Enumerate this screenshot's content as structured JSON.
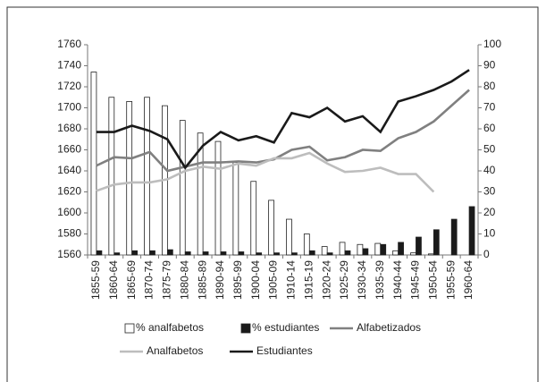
{
  "chart_data": {
    "type": "combo",
    "categories": [
      "1855-59",
      "1860-64",
      "1865-69",
      "1870-74",
      "1875-79",
      "1880-84",
      "1885-89",
      "1890-94",
      "1895-99",
      "1900-04",
      "1905-09",
      "1910-14",
      "1915-19",
      "1920-24",
      "1925-29",
      "1930-34",
      "1935-39",
      "1940-44",
      "1945-49",
      "1950-54",
      "1955-59",
      "1960-64"
    ],
    "ylim": [
      1560,
      1760
    ],
    "yticks": [
      1560,
      1580,
      1600,
      1620,
      1640,
      1660,
      1680,
      1700,
      1720,
      1740,
      1760
    ],
    "y2lim": [
      0,
      100
    ],
    "y2ticks": [
      0,
      10,
      20,
      30,
      40,
      50,
      60,
      70,
      80,
      90,
      100
    ],
    "series": [
      {
        "name": "% analfabetos",
        "type": "bar",
        "axis": "y2",
        "color": "#ffffff",
        "values": [
          87,
          75,
          73,
          75,
          71,
          64,
          58,
          54,
          44,
          35,
          26,
          17,
          10,
          4,
          6,
          5,
          5.5,
          2,
          1,
          0.5,
          0,
          0
        ]
      },
      {
        "name": "% estudiantes",
        "type": "bar",
        "axis": "y2",
        "color": "#1a1a1a",
        "values": [
          2,
          1,
          2,
          2,
          2.5,
          1.5,
          1.5,
          1.5,
          1.5,
          1,
          1,
          1,
          2,
          1,
          2,
          3,
          5,
          6,
          8.5,
          12,
          17,
          23
        ]
      },
      {
        "name": "Alfabetizados",
        "type": "line",
        "color": "#808080",
        "values": [
          1645,
          1653,
          1652,
          1658,
          1640,
          1644,
          1648,
          1648,
          1649,
          1648,
          1651,
          1660,
          1663,
          1650,
          1653,
          1660,
          1659,
          1671,
          1677,
          1687,
          1702,
          1717
        ]
      },
      {
        "name": "Analfabetos",
        "type": "line",
        "color": "#bdbdbd",
        "values": [
          1621,
          1627,
          1629,
          1629,
          1632,
          1640,
          1644,
          1642,
          1647,
          1645,
          1652,
          1652,
          1657,
          1647,
          1639,
          1640,
          1643,
          1637,
          1637,
          1620,
          null,
          null
        ]
      },
      {
        "name": "Estudiantes",
        "type": "line",
        "color": "#1a1a1a",
        "values": [
          1677,
          1677,
          1683,
          1678,
          1670,
          1643,
          1664,
          1677,
          1669,
          1673,
          1667,
          1695,
          1691,
          1700,
          1687,
          1692,
          1677,
          1706,
          1711,
          1717,
          1725,
          1736
        ]
      }
    ]
  }
}
